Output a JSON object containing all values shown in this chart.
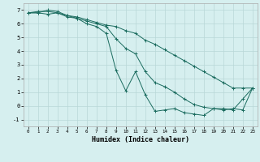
{
  "xlabel": "Humidex (Indice chaleur)",
  "xlim": [
    -0.5,
    23.5
  ],
  "ylim": [
    -1.5,
    7.5
  ],
  "yticks": [
    -1,
    0,
    1,
    2,
    3,
    4,
    5,
    6,
    7
  ],
  "xticks": [
    0,
    1,
    2,
    3,
    4,
    5,
    6,
    7,
    8,
    9,
    10,
    11,
    12,
    13,
    14,
    15,
    16,
    17,
    18,
    19,
    20,
    21,
    22,
    23
  ],
  "line_color": "#1a6b5e",
  "bg_color": "#d6efef",
  "grid_color": "#b8d8d8",
  "series1_x": [
    0,
    1,
    2,
    3,
    4,
    5,
    6,
    7,
    8,
    9,
    10,
    11,
    12,
    13,
    14,
    15,
    16,
    17,
    18,
    19,
    20,
    21,
    22,
    23
  ],
  "series1_y": [
    6.8,
    6.9,
    6.9,
    6.8,
    6.6,
    6.5,
    6.3,
    6.1,
    5.9,
    5.8,
    5.5,
    5.3,
    4.8,
    4.5,
    4.1,
    3.7,
    3.3,
    2.9,
    2.5,
    2.1,
    1.7,
    1.3,
    1.3,
    1.3
  ],
  "series2_x": [
    0,
    1,
    2,
    3,
    4,
    5,
    6,
    7,
    8,
    9,
    10,
    11,
    12,
    13,
    14,
    15,
    16,
    17,
    18,
    19,
    20,
    21,
    22,
    23
  ],
  "series2_y": [
    6.8,
    6.8,
    7.0,
    6.9,
    6.6,
    6.4,
    6.2,
    6.0,
    5.8,
    4.9,
    4.2,
    3.8,
    2.5,
    1.7,
    1.4,
    1.0,
    0.5,
    0.1,
    -0.1,
    -0.2,
    -0.2,
    -0.3,
    0.5,
    1.3
  ],
  "series3_x": [
    0,
    1,
    2,
    3,
    4,
    5,
    6,
    7,
    8,
    9,
    10,
    11,
    12,
    13,
    14,
    15,
    16,
    17,
    18,
    19,
    20,
    21,
    22,
    23
  ],
  "series3_y": [
    6.8,
    6.8,
    6.7,
    6.8,
    6.5,
    6.4,
    6.0,
    5.8,
    5.3,
    2.6,
    1.1,
    2.5,
    0.8,
    -0.4,
    -0.3,
    -0.2,
    -0.5,
    -0.6,
    -0.7,
    -0.2,
    -0.3,
    -0.2,
    -0.3,
    1.3
  ]
}
